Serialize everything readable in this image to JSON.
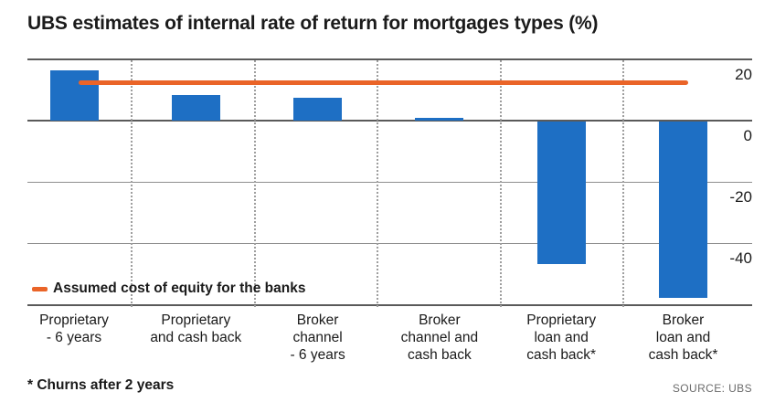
{
  "title": "UBS estimates of internal rate of return for mortgages types (%)",
  "footnote": "* Churns after 2 years",
  "source": "SOURCE: UBS",
  "colors": {
    "bar_blue": "#1e6fc4",
    "reference_orange": "#ea6428",
    "grid_dark": "#5a5a5a",
    "grid_light": "#8f8f8f",
    "grid_dotted": "#9e9e9e",
    "text": "#1a1a1a",
    "source_text": "#6b6b6b"
  },
  "chart_data": {
    "type": "bar",
    "title": "UBS estimates of internal rate of return for mortgages types (%)",
    "categories": [
      "Proprietary - 6 years",
      "Proprietary and cash back",
      "Broker channel - 6 years",
      "Broker channel and cash back",
      "Proprietary loan and cash back*",
      "Broker loan and cash back*"
    ],
    "category_label_lines": [
      [
        "Proprietary",
        "- 6 years"
      ],
      [
        "Proprietary",
        "and cash back"
      ],
      [
        "Broker",
        "channel",
        "- 6 years"
      ],
      [
        "Broker",
        "channel and",
        "cash back"
      ],
      [
        "Proprietary",
        "loan and",
        "cash back*"
      ],
      [
        "Broker",
        "loan and",
        "cash back*"
      ]
    ],
    "values": [
      16.5,
      8.5,
      7.5,
      1,
      -47,
      -58
    ],
    "unit": "%",
    "reference_line": {
      "name": "Assumed cost of equity for the banks",
      "value": 12.5,
      "color": "#ea6428"
    },
    "ylim": [
      -60,
      20
    ],
    "yticks": [
      20,
      0,
      -20,
      -40
    ],
    "y_axis_side": "right",
    "grid": "horizontal gridlines + dotted vertical category separators",
    "legend_position": "bottom-left"
  }
}
